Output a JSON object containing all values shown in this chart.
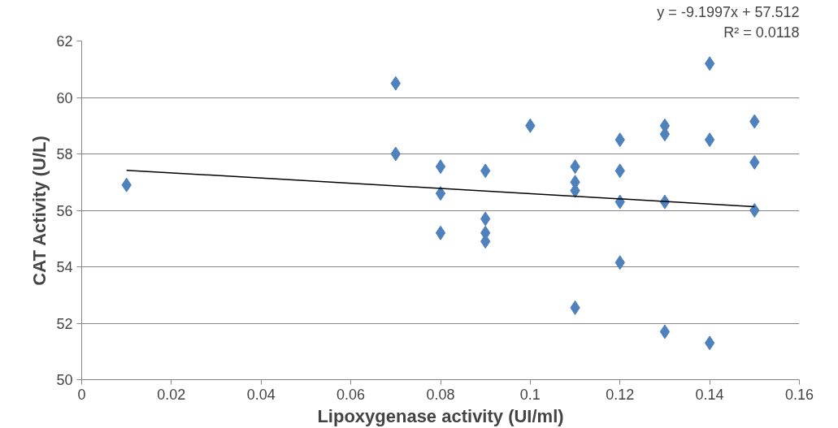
{
  "chart_data": {
    "type": "scatter",
    "xlabel": "Lipoxygenase activity (UI/ml)",
    "ylabel": "CAT Activity (U/L)",
    "annotations": [
      "y = -9.1997x + 57.512",
      "R² = 0.0118"
    ],
    "xlim": [
      0,
      0.16
    ],
    "xticks": [
      0,
      0.02,
      0.04,
      0.06,
      0.08,
      0.1,
      0.12,
      0.14,
      0.16
    ],
    "ylim": [
      50,
      62
    ],
    "yticks": [
      50,
      52,
      54,
      56,
      58,
      60,
      62
    ],
    "grid": "y",
    "marker": "diamond",
    "series": [
      {
        "color": "#4f81bd",
        "x": [
          0.01,
          0.07,
          0.07,
          0.08,
          0.08,
          0.08,
          0.09,
          0.09,
          0.09,
          0.09,
          0.1,
          0.11,
          0.11,
          0.11,
          0.11,
          0.12,
          0.12,
          0.12,
          0.12,
          0.13,
          0.13,
          0.13,
          0.13,
          0.14,
          0.14,
          0.14,
          0.15,
          0.15,
          0.15
        ],
        "values": [
          56.9,
          60.5,
          58.0,
          57.55,
          56.6,
          55.2,
          57.4,
          55.7,
          55.2,
          54.9,
          59.0,
          57.55,
          57.0,
          56.7,
          52.55,
          58.5,
          57.4,
          56.3,
          54.15,
          59.0,
          58.7,
          56.3,
          51.7,
          61.2,
          58.5,
          51.3,
          59.15,
          57.7,
          56.0
        ]
      },
      {
        "type": "line",
        "color": "#000000",
        "marker": "none",
        "x": [
          0.01,
          0.15
        ],
        "values": [
          57.42,
          56.13
        ]
      }
    ]
  }
}
